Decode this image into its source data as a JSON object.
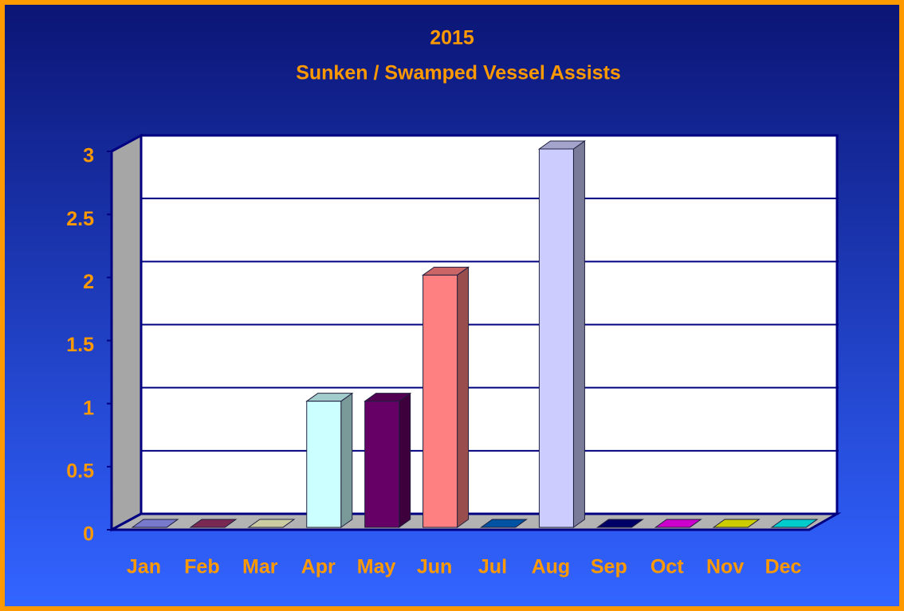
{
  "chart_data": {
    "type": "bar3d",
    "title": "2015",
    "subtitle": "Sunken / Swamped Vessel Assists",
    "categories": [
      "Jan",
      "Feb",
      "Mar",
      "Apr",
      "May",
      "Jun",
      "Jul",
      "Aug",
      "Sep",
      "Oct",
      "Nov",
      "Dec"
    ],
    "values": [
      0,
      0,
      0,
      1,
      1,
      2,
      0,
      3,
      0,
      0,
      0,
      0
    ],
    "colors": [
      "#9999ff",
      "#993366",
      "#ffffcc",
      "#ccffff",
      "#660066",
      "#ff8080",
      "#0066cc",
      "#ccccff",
      "#000080",
      "#ff00ff",
      "#ffff00",
      "#00ffff"
    ],
    "ylim": [
      0,
      3
    ],
    "yticks": [
      0,
      0.5,
      1,
      1.5,
      2,
      2.5,
      3
    ],
    "grid": true
  }
}
